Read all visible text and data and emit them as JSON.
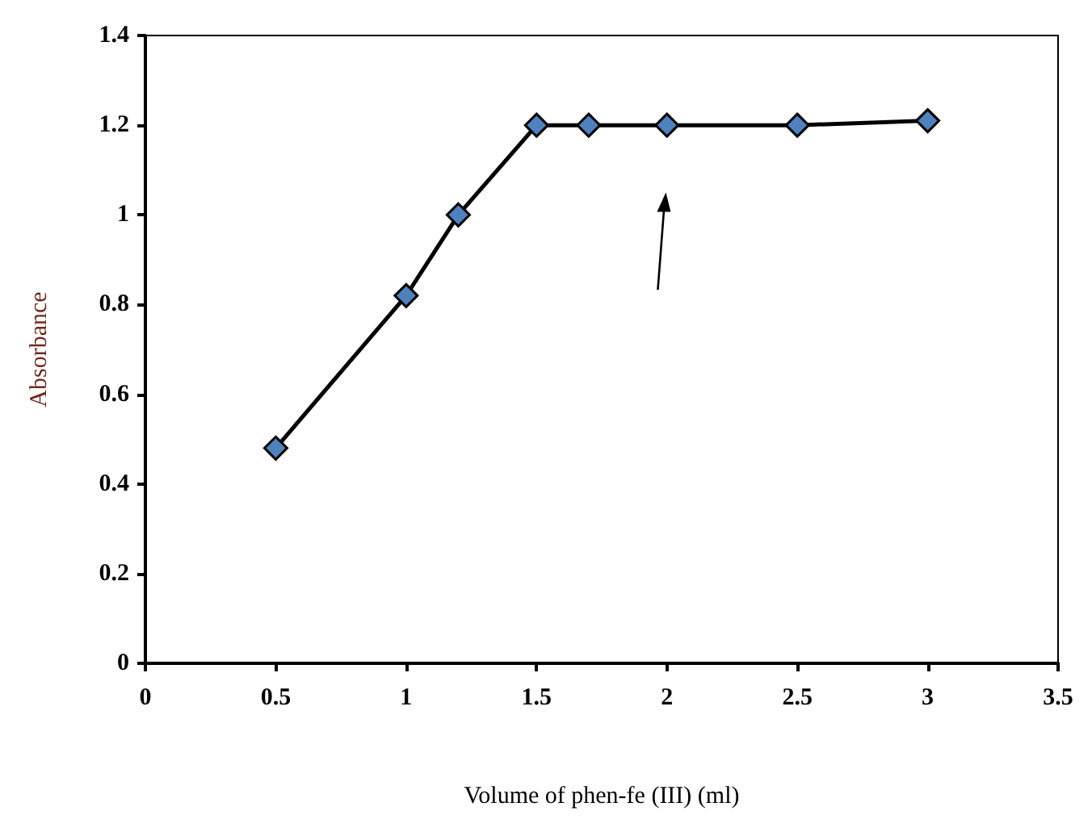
{
  "chart_data": {
    "type": "line",
    "xlabel": "Volume of phen-fe (III) (ml)",
    "ylabel": "Absorbance",
    "x": [
      0.5,
      1,
      1.2,
      1.5,
      1.7,
      2,
      2.5,
      3
    ],
    "series": [
      {
        "color": "#4f81bd",
        "values": [
          0.48,
          0.82,
          1.0,
          1.2,
          1.2,
          1.2,
          1.2,
          1.21
        ]
      }
    ],
    "xlim": [
      0,
      3.5
    ],
    "xticks": [
      0,
      0.5,
      1,
      1.5,
      2,
      2.5,
      3,
      3.5
    ],
    "ylim": [
      0,
      1.4
    ],
    "yticks": [
      0,
      0.2,
      0.4,
      0.6,
      0.8,
      1,
      1.2,
      1.4
    ],
    "grid": false,
    "marker": "diamond",
    "line_style": "solid"
  }
}
